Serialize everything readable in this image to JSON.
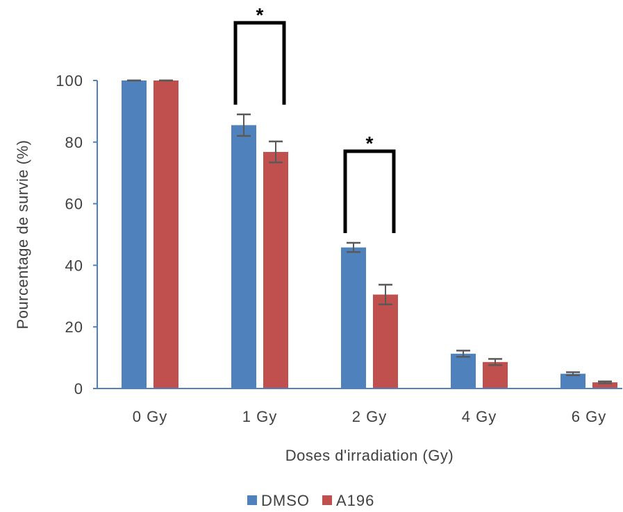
{
  "chart_data": {
    "type": "bar",
    "title": "",
    "xlabel": "Doses d'irradiation (Gy)",
    "ylabel": "Pourcentage de survie (%)",
    "ylim": [
      0,
      100
    ],
    "yticks": [
      0,
      20,
      40,
      60,
      80,
      100
    ],
    "categories": [
      "0 Gy",
      "1 Gy",
      "2 Gy",
      "4 Gy",
      "6 Gy"
    ],
    "series": [
      {
        "name": "DMSO",
        "color": "#4F81BD",
        "values": [
          100,
          85.5,
          45.8,
          11.3,
          4.8
        ],
        "errors": [
          0,
          3.5,
          1.5,
          1.0,
          0.5
        ]
      },
      {
        "name": "A196",
        "color": "#C0504D",
        "values": [
          100,
          76.8,
          30.5,
          8.6,
          2.0
        ],
        "errors": [
          0,
          3.4,
          3.2,
          1.0,
          0.3
        ]
      }
    ],
    "legend_position": "bottom",
    "annotations": [
      {
        "category": "1 Gy",
        "label": "*"
      },
      {
        "category": "2 Gy",
        "label": "*"
      }
    ]
  }
}
